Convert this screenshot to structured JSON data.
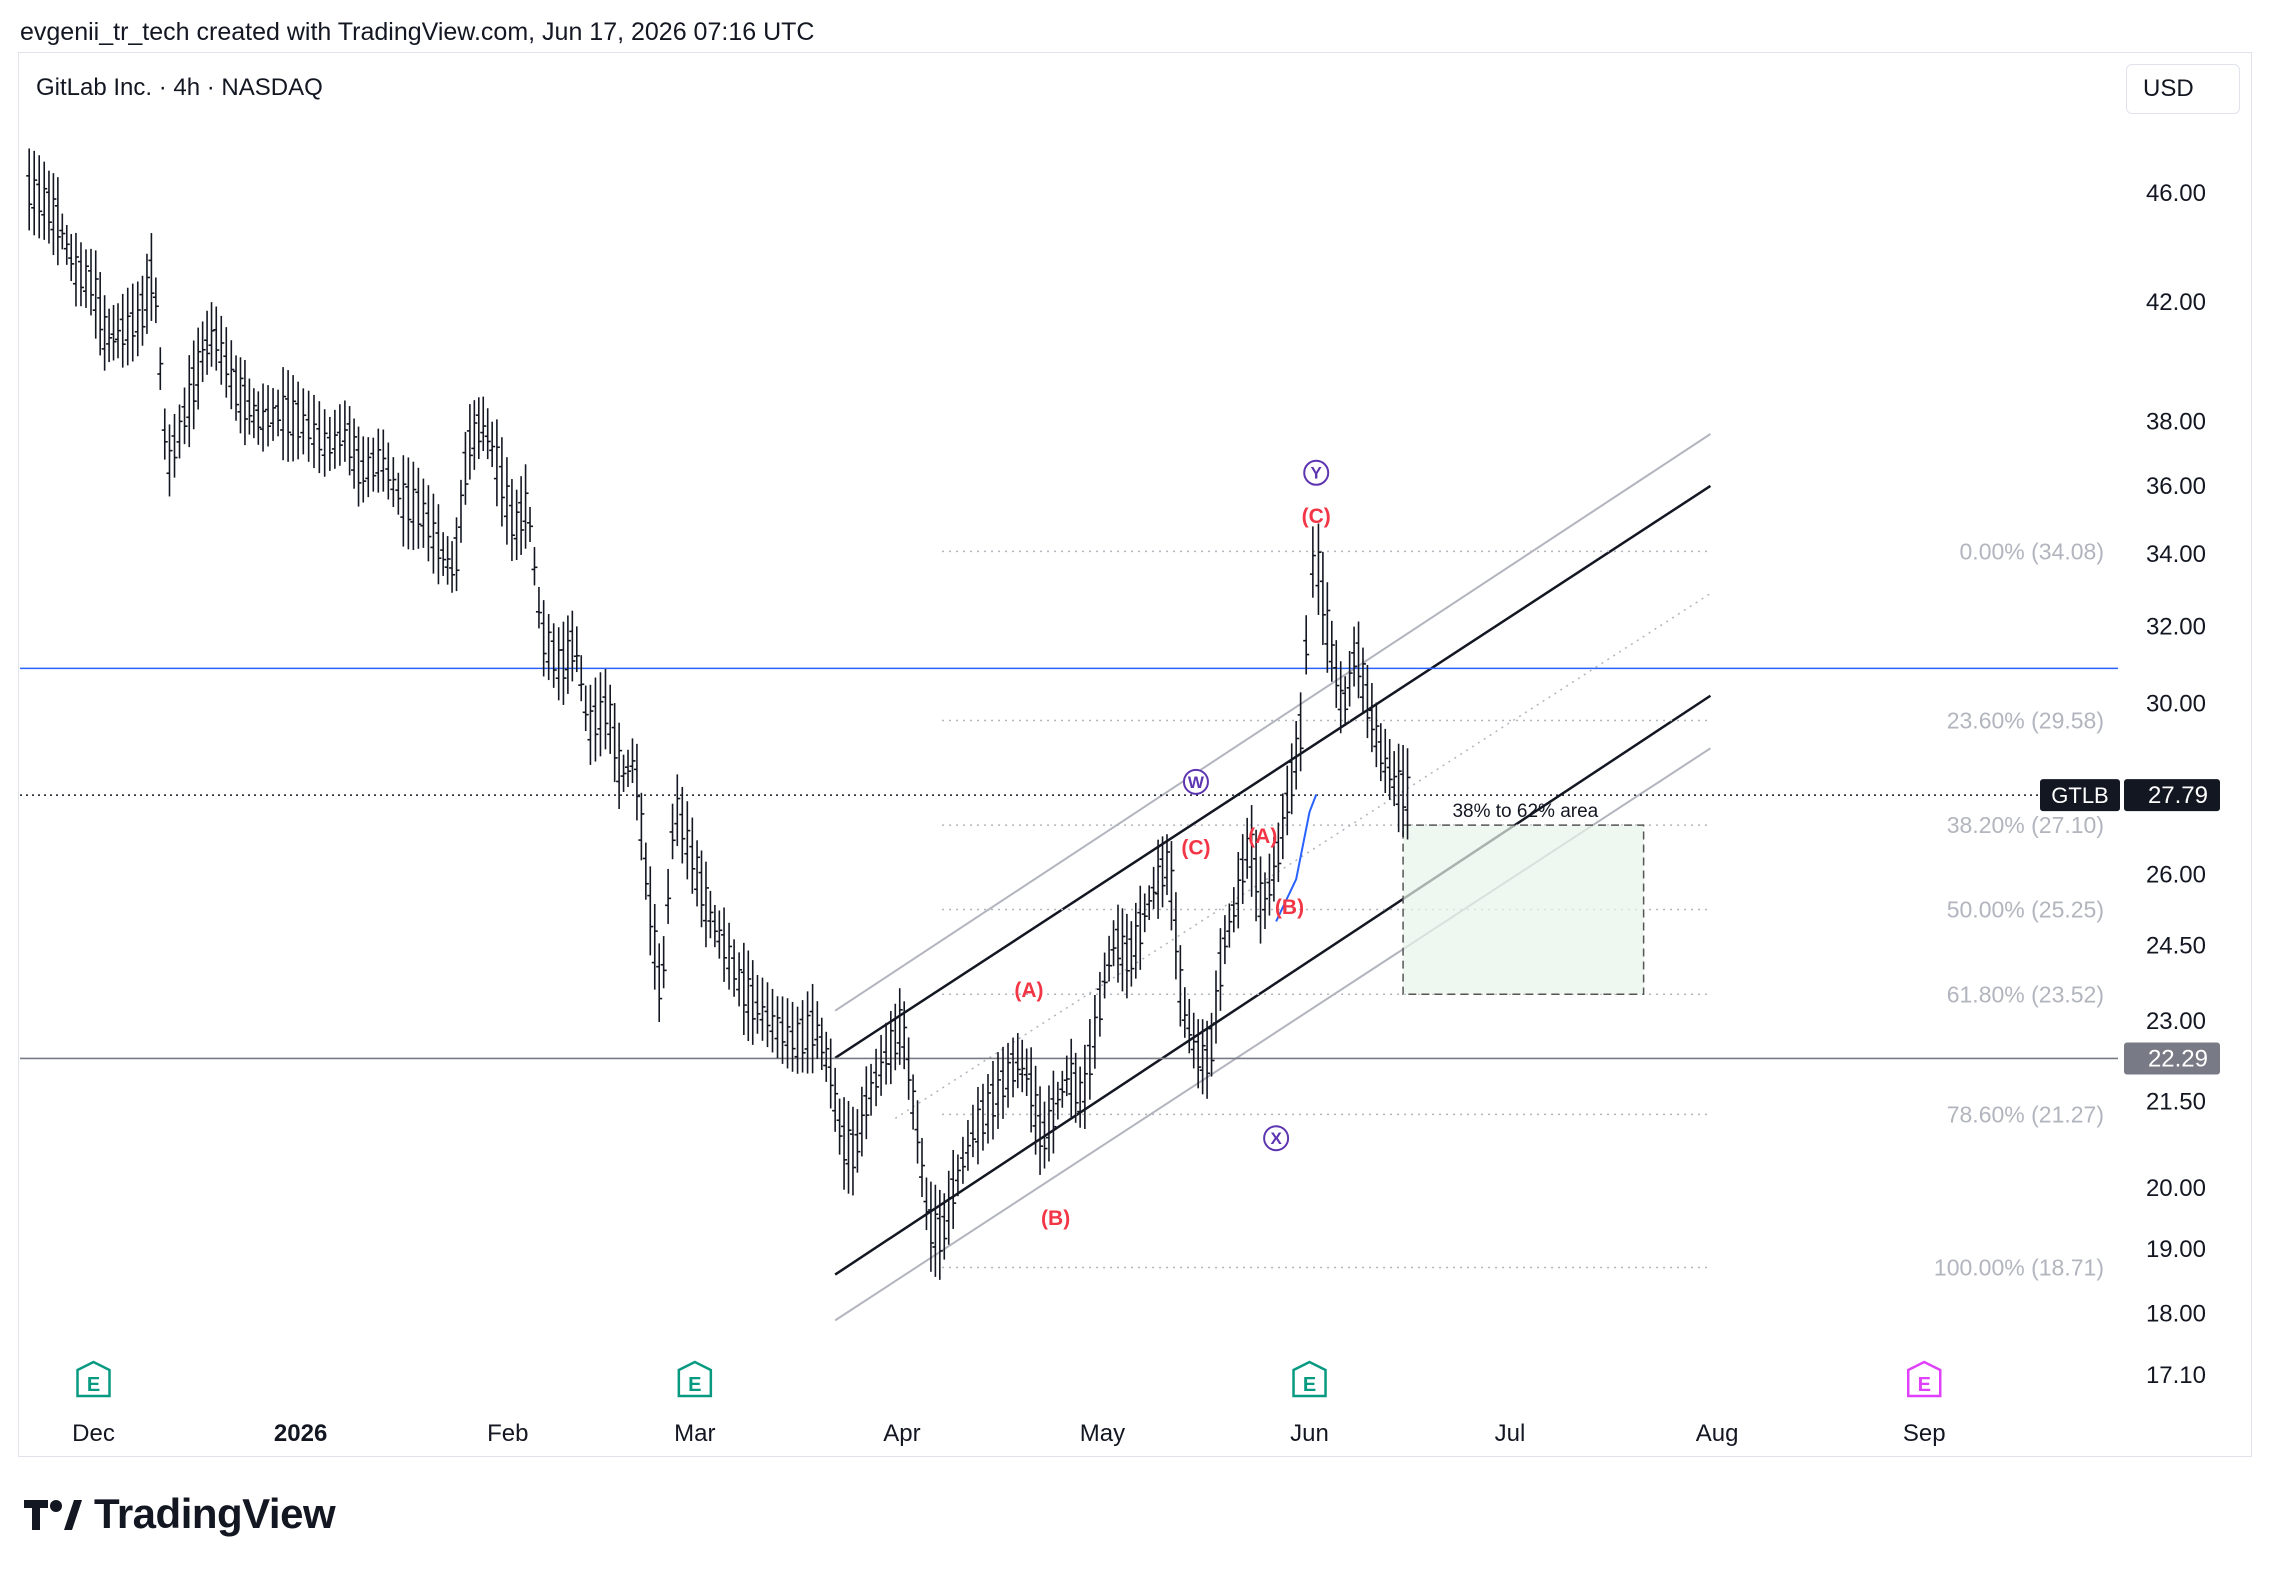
{
  "header": {
    "credit": "evgenii_tr_tech created with TradingView.com, Jun 17, 2026 07:16 UTC"
  },
  "chart_title": "GitLab Inc. · 4h · NASDAQ",
  "currency": "USD",
  "footer": {
    "brand": "TradingView",
    "logo_icon": "tradingview-logo-icon"
  },
  "colors": {
    "candle": "#131722",
    "resistance_line": "#2962ff",
    "support_line": "#787b86",
    "fib_text": "#b2b5be",
    "wave_abc": "#f23645",
    "wave_wxy": "#5e35b1",
    "earnings": "#089981",
    "dividend": "#e040fb",
    "target_zone_fill": "#e8f5e9"
  },
  "chart_data": {
    "type": "candlestick",
    "symbol": "GTLB",
    "interval": "4h",
    "ylim": [
      17.1,
      48.5
    ],
    "y_scale": "log",
    "y_ticks": [
      "46.00",
      "42.00",
      "38.00",
      "36.00",
      "34.00",
      "32.00",
      "30.00",
      "26.00",
      "24.50",
      "23.00",
      "21.50",
      "20.00",
      "19.00",
      "18.00",
      "17.10"
    ],
    "x_ticks": [
      {
        "label": "Dec",
        "date": "2025-12-01",
        "bold": false
      },
      {
        "label": "2026",
        "date": "2026-01-01",
        "bold": true
      },
      {
        "label": "Feb",
        "date": "2026-02-01",
        "bold": false
      },
      {
        "label": "Mar",
        "date": "2026-03-01",
        "bold": false
      },
      {
        "label": "Apr",
        "date": "2026-04-01",
        "bold": false
      },
      {
        "label": "May",
        "date": "2026-05-01",
        "bold": false
      },
      {
        "label": "Jun",
        "date": "2026-06-01",
        "bold": false
      },
      {
        "label": "Jul",
        "date": "2026-07-01",
        "bold": false
      },
      {
        "label": "Aug",
        "date": "2026-08-01",
        "bold": false
      },
      {
        "label": "Sep",
        "date": "2026-09-01",
        "bold": false
      }
    ],
    "price_series": [
      [
        "2025-11-21",
        46.2
      ],
      [
        "2025-11-24",
        45.6
      ],
      [
        "2025-11-26",
        44.8
      ],
      [
        "2025-11-28",
        43.2
      ],
      [
        "2025-12-01",
        42.6
      ],
      [
        "2025-12-03",
        40.6
      ],
      [
        "2025-12-05",
        40.9
      ],
      [
        "2025-12-08",
        41.4
      ],
      [
        "2025-12-10",
        43.2
      ],
      [
        "2025-12-12",
        36.5
      ],
      [
        "2025-12-15",
        38.4
      ],
      [
        "2025-12-17",
        40.0
      ],
      [
        "2025-12-19",
        40.9
      ],
      [
        "2025-12-22",
        39.2
      ],
      [
        "2025-12-24",
        38.5
      ],
      [
        "2025-12-26",
        38.0
      ],
      [
        "2025-12-29",
        38.3
      ],
      [
        "2026-01-01",
        38.0
      ],
      [
        "2026-01-05",
        37.2
      ],
      [
        "2026-01-08",
        37.6
      ],
      [
        "2026-01-10",
        36.4
      ],
      [
        "2026-01-13",
        36.8
      ],
      [
        "2026-01-16",
        35.6
      ],
      [
        "2026-01-19",
        35.3
      ],
      [
        "2026-01-22",
        34.1
      ],
      [
        "2026-01-24",
        33.4
      ],
      [
        "2026-01-26",
        37.2
      ],
      [
        "2026-01-28",
        37.9
      ],
      [
        "2026-01-30",
        37.0
      ],
      [
        "2026-02-02",
        34.7
      ],
      [
        "2026-02-04",
        35.5
      ],
      [
        "2026-02-06",
        31.8
      ],
      [
        "2026-02-09",
        30.9
      ],
      [
        "2026-02-11",
        31.6
      ],
      [
        "2026-02-13",
        29.4
      ],
      [
        "2026-02-16",
        29.9
      ],
      [
        "2026-02-18",
        28.2
      ],
      [
        "2026-02-20",
        28.6
      ],
      [
        "2026-02-22",
        25.6
      ],
      [
        "2026-02-24",
        23.4
      ],
      [
        "2026-02-26",
        27.6
      ],
      [
        "2026-03-01",
        26.2
      ],
      [
        "2026-03-03",
        25.2
      ],
      [
        "2026-03-05",
        24.6
      ],
      [
        "2026-03-08",
        23.7
      ],
      [
        "2026-03-10",
        23.3
      ],
      [
        "2026-03-13",
        22.9
      ],
      [
        "2026-03-16",
        22.6
      ],
      [
        "2026-03-19",
        22.9
      ],
      [
        "2026-03-21",
        22.2
      ],
      [
        "2026-03-23",
        20.8
      ],
      [
        "2026-03-25",
        20.6
      ],
      [
        "2026-03-27",
        21.6
      ],
      [
        "2026-03-30",
        22.4
      ],
      [
        "2026-04-01",
        23.0
      ],
      [
        "2026-04-03",
        21.2
      ],
      [
        "2026-04-05",
        19.4
      ],
      [
        "2026-04-07",
        19.2
      ],
      [
        "2026-04-09",
        20.1
      ],
      [
        "2026-04-12",
        21.0
      ],
      [
        "2026-04-15",
        21.6
      ],
      [
        "2026-04-18",
        22.2
      ],
      [
        "2026-04-20",
        21.9
      ],
      [
        "2026-04-22",
        20.8
      ],
      [
        "2026-04-24",
        21.4
      ],
      [
        "2026-04-26",
        22.0
      ],
      [
        "2026-04-28",
        21.5
      ],
      [
        "2026-05-01",
        23.6
      ],
      [
        "2026-05-03",
        24.6
      ],
      [
        "2026-05-05",
        24.2
      ],
      [
        "2026-05-07",
        25.0
      ],
      [
        "2026-05-09",
        25.8
      ],
      [
        "2026-05-11",
        26.3
      ],
      [
        "2026-05-13",
        23.2
      ],
      [
        "2026-05-15",
        22.4
      ],
      [
        "2026-05-17",
        22.2
      ],
      [
        "2026-05-19",
        24.4
      ],
      [
        "2026-05-21",
        25.4
      ],
      [
        "2026-05-23",
        26.8
      ],
      [
        "2026-05-25",
        25.2
      ],
      [
        "2026-05-27",
        26.2
      ],
      [
        "2026-05-29",
        27.9
      ],
      [
        "2026-05-31",
        29.6
      ],
      [
        "2026-06-01",
        33.4
      ],
      [
        "2026-06-02",
        34.0
      ],
      [
        "2026-06-04",
        31.6
      ],
      [
        "2026-06-06",
        29.8
      ],
      [
        "2026-06-08",
        31.4
      ],
      [
        "2026-06-10",
        29.8
      ],
      [
        "2026-06-12",
        28.6
      ],
      [
        "2026-06-14",
        28.0
      ],
      [
        "2026-06-16",
        27.79
      ]
    ],
    "last_price": {
      "label": "GTLB",
      "value": "27.79"
    },
    "horizontal_levels": [
      {
        "name": "resistance",
        "value": 30.9
      },
      {
        "name": "support",
        "value": 22.29,
        "label": "22.29"
      }
    ],
    "fib_levels": [
      {
        "ratio": "0.00%",
        "price": 34.08,
        "label": "0.00% (34.08)"
      },
      {
        "ratio": "23.60%",
        "price": 29.58,
        "label": "23.60% (29.58)"
      },
      {
        "ratio": "38.20%",
        "price": 27.1,
        "label": "38.20% (27.10)"
      },
      {
        "ratio": "50.00%",
        "price": 25.25,
        "label": "50.00% (25.25)"
      },
      {
        "ratio": "61.80%",
        "price": 23.52,
        "label": "61.80% (23.52)"
      },
      {
        "ratio": "78.60%",
        "price": 21.27,
        "label": "78.60% (21.27)"
      },
      {
        "ratio": "100.00%",
        "price": 18.71,
        "label": "100.00% (18.71)"
      }
    ],
    "fib_range": {
      "start": "2026-04-07",
      "end": "2026-07-31"
    },
    "target_zone": {
      "label": "38% to 62% area",
      "x_start": "2026-06-15",
      "x_end": "2026-07-21",
      "top": 27.1,
      "bottom": 23.52
    },
    "channel": {
      "upper_bound": [
        [
          "2026-03-22",
          23.2
        ],
        [
          "2026-07-31",
          37.6
        ]
      ],
      "upper": [
        [
          "2026-03-22",
          22.3
        ],
        [
          "2026-07-31",
          36.0
        ]
      ],
      "mid": [
        [
          "2026-03-31",
          21.2
        ],
        [
          "2026-07-31",
          32.9
        ]
      ],
      "lower": [
        [
          "2026-03-22",
          18.6
        ],
        [
          "2026-07-31",
          30.2
        ]
      ],
      "lower_bound": [
        [
          "2026-03-22",
          17.9
        ],
        [
          "2026-07-31",
          28.9
        ]
      ]
    },
    "wave_curve": [
      [
        "2026-05-27",
        25.0
      ],
      [
        "2026-05-30",
        25.9
      ],
      [
        "2026-06-01",
        27.4
      ],
      [
        "2026-06-02",
        27.8
      ]
    ],
    "wave_labels": [
      {
        "text": "(A)",
        "date": "2026-04-20",
        "price": 23.6,
        "group": "abc"
      },
      {
        "text": "(B)",
        "date": "2026-04-24",
        "price": 19.5,
        "group": "abc"
      },
      {
        "text": "(C)",
        "date": "2026-05-15",
        "price": 26.6,
        "group": "abc"
      },
      {
        "text": "W",
        "date": "2026-05-15",
        "price": 28.1,
        "group": "wxy"
      },
      {
        "text": "X",
        "date": "2026-05-27",
        "price": 20.85,
        "group": "wxy"
      },
      {
        "text": "(A)",
        "date": "2026-05-25",
        "price": 26.85,
        "group": "abc"
      },
      {
        "text": "(B)",
        "date": "2026-05-29",
        "price": 25.3,
        "group": "abc"
      },
      {
        "text": "(C)",
        "date": "2026-06-02",
        "price": 35.1,
        "group": "abc"
      },
      {
        "text": "Y",
        "date": "2026-06-02",
        "price": 36.4,
        "group": "wxy"
      }
    ],
    "event_markers": [
      {
        "type": "earnings",
        "date": "2025-12-01",
        "glyph": "E"
      },
      {
        "type": "earnings",
        "date": "2026-03-01",
        "glyph": "E"
      },
      {
        "type": "earnings",
        "date": "2026-06-01",
        "glyph": "E"
      },
      {
        "type": "dividend",
        "date": "2026-09-01",
        "glyph": "E"
      }
    ]
  }
}
